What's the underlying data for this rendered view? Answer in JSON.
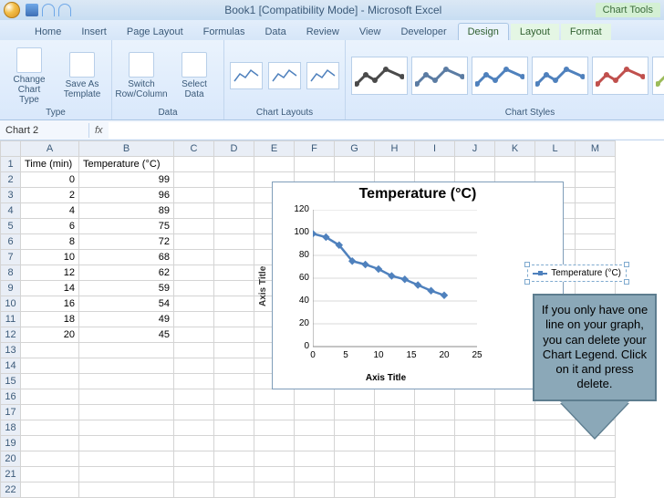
{
  "title": "Book1  [Compatibility Mode] - Microsoft Excel",
  "chart_tools_label": "Chart Tools",
  "tabs": [
    "Home",
    "Insert",
    "Page Layout",
    "Formulas",
    "Data",
    "Review",
    "View",
    "Developer"
  ],
  "context_tabs": [
    "Design",
    "Layout",
    "Format"
  ],
  "active_tab": "Design",
  "ribbon": {
    "type_group": "Type",
    "data_group": "Data",
    "layouts_group": "Chart Layouts",
    "styles_group": "Chart Styles",
    "change_type": "Change Chart Type",
    "save_template": "Save As Template",
    "switch_rc": "Switch Row/Column",
    "select_data": "Select Data"
  },
  "namebox": "Chart 2",
  "columns": [
    "A",
    "B",
    "C",
    "D",
    "E",
    "F",
    "G",
    "H",
    "I",
    "J",
    "K",
    "L",
    "M"
  ],
  "headers": {
    "A": "Time (min)",
    "B": "Temperature (°C)"
  },
  "rows": [
    {
      "A": "0",
      "B": "99"
    },
    {
      "A": "2",
      "B": "96"
    },
    {
      "A": "4",
      "B": "89"
    },
    {
      "A": "6",
      "B": "75"
    },
    {
      "A": "8",
      "B": "72"
    },
    {
      "A": "10",
      "B": "68"
    },
    {
      "A": "12",
      "B": "62"
    },
    {
      "A": "14",
      "B": "59"
    },
    {
      "A": "16",
      "B": "54"
    },
    {
      "A": "18",
      "B": "49"
    },
    {
      "A": "20",
      "B": "45"
    }
  ],
  "total_rows": 23,
  "chart": {
    "title": "Temperature (°C)",
    "series_name": "Temperature (°C)",
    "line_color": "#4f81bd",
    "marker_color": "#4f81bd",
    "x": [
      0,
      2,
      4,
      6,
      8,
      10,
      12,
      14,
      16,
      18,
      20
    ],
    "y": [
      99,
      96,
      89,
      75,
      72,
      68,
      62,
      59,
      54,
      49,
      45
    ],
    "xlim": [
      0,
      25
    ],
    "ylim": [
      0,
      120
    ],
    "xticks": [
      0,
      5,
      10,
      15,
      20,
      25
    ],
    "yticks": [
      0,
      20,
      40,
      60,
      80,
      100,
      120
    ],
    "y_label": "Axis Title",
    "x_label": "Axis Title"
  },
  "style_colors": [
    "#4a4a4a",
    "#5b7ca3",
    "#4f81bd",
    "#4f81bd",
    "#c0504d",
    "#9bbb59"
  ],
  "callout": "If you only have one line on your graph, you can delete your Chart Legend. Click on it and press delete."
}
